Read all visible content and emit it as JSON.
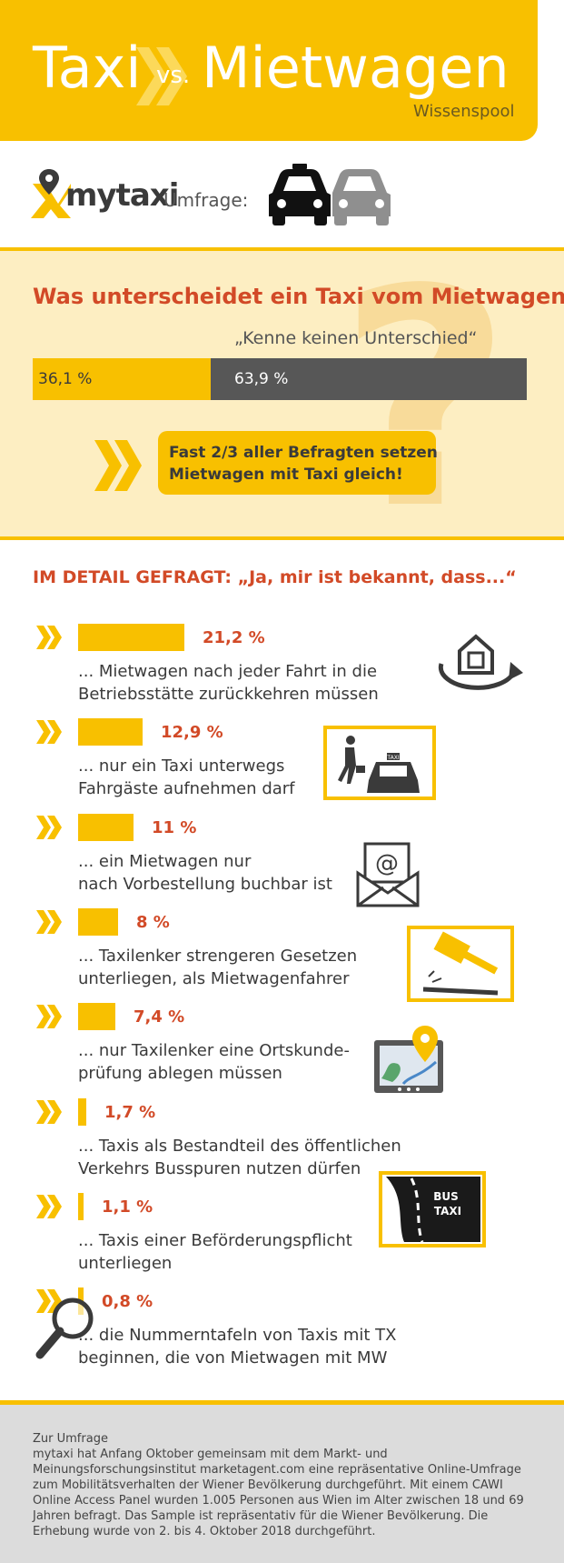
{
  "header": {
    "title_left": "Taxi",
    "vs": "vs.",
    "title_right": "Mietwagen",
    "subtitle": "Wissenspool"
  },
  "brand": {
    "logo_text": "mytaxi",
    "umfrage_label": "Umfrage:"
  },
  "question": {
    "title": "Was unterscheidet ein Taxi vom Mietwagen?",
    "bar_caption": "„Kenne keinen Unterschied“",
    "known_value": 36.1,
    "unknown_value": 63.9,
    "known_label": "36,1 %",
    "unknown_label": "63,9 %",
    "callout_line1": "Fast 2/3 aller Befragten setzen",
    "callout_line2": "Mietwagen mit Taxi gleich!"
  },
  "detail": {
    "title": "IM DETAIL GEFRAGT: „Ja, mir ist bekannt, dass...“",
    "items": [
      {
        "value": 21.2,
        "label": "21,2 %",
        "line1": "... Mietwagen nach jeder Fahrt in die",
        "line2": "Betriebsstätte zurückkehren müssen",
        "icon": "home-return-icon"
      },
      {
        "value": 12.9,
        "label": "12,9 %",
        "line1": "... nur ein Taxi unterwegs",
        "line2": "Fahrgäste aufnehmen darf",
        "icon": "hail-taxi-icon"
      },
      {
        "value": 11,
        "label": "11 %",
        "line1": "... ein Mietwagen nur",
        "line2": "nach Vorbestellung buchbar ist",
        "icon": "email-icon"
      },
      {
        "value": 8,
        "label": "8 %",
        "line1": "... Taxilenker strengeren Gesetzen",
        "line2": "unterliegen, als Mietwagenfahrer",
        "icon": "gavel-icon"
      },
      {
        "value": 7.4,
        "label": "7,4 %",
        "line1": "... nur Taxilenker eine Ortskunde-",
        "line2": "prüfung ablegen müssen",
        "icon": "map-pin-icon"
      },
      {
        "value": 1.7,
        "label": "1,7 %",
        "line1": "... Taxis als Bestandteil des öffentlichen",
        "line2": "Verkehrs Busspuren nutzen dürfen",
        "icon": "bus-lane-icon"
      },
      {
        "value": 1.1,
        "label": "1,1 %",
        "line1": "... Taxis einer Beförderungspflicht",
        "line2": "unterliegen",
        "icon": "none"
      },
      {
        "value": 0.8,
        "label": "0,8 %",
        "line1": "... die Nummerntafeln von Taxis mit TX",
        "line2": "beginnen, die von Mietwagen mit MW",
        "icon": "magnifier-icon"
      }
    ],
    "bus_lane_line1": "BUS",
    "bus_lane_line2": "TAXI",
    "taxi_sign": "TAXI"
  },
  "footer": {
    "title": "Zur Umfrage",
    "body": "mytaxi hat Anfang Oktober gemeinsam mit dem Markt- und Meinungsforschungsinstitut marketagent.com eine repräsentative Online-Umfrage zum Mobilitätsverhalten der Wiener Bevölkerung durchgeführt. Mit einem CAWI Online Access Panel  wurden 1.005 Personen aus Wien im Alter zwischen 18 und 69 Jahren befragt. Das Sample ist repräsentativ für die Wiener Bevölkerung. Die Erhebung wurde von 2. bis 4. Oktober 2018 durchgeführt."
  },
  "colors": {
    "accent": "#f8c000",
    "red": "#d24a27",
    "dark": "#575757",
    "light": "#fdeec2"
  }
}
